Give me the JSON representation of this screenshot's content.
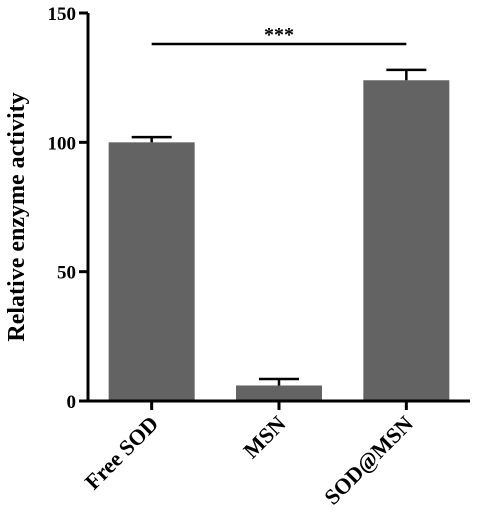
{
  "chart_data": {
    "type": "bar",
    "categories": [
      "Free SOD",
      "MSN",
      "SOD@MSN"
    ],
    "series": [
      {
        "values": [
          100,
          6,
          124
        ],
        "errors": [
          2,
          2.5,
          4
        ]
      }
    ],
    "ylabel": "Relative enzyme activity",
    "xlabel": "",
    "ylim": [
      0,
      150
    ],
    "yticks": [
      0,
      50,
      100,
      150
    ],
    "grid": false,
    "bar_color": "#636363",
    "annotation": {
      "text": "***",
      "from": "Free SOD",
      "to": "SOD@MSN",
      "y": 138
    }
  }
}
